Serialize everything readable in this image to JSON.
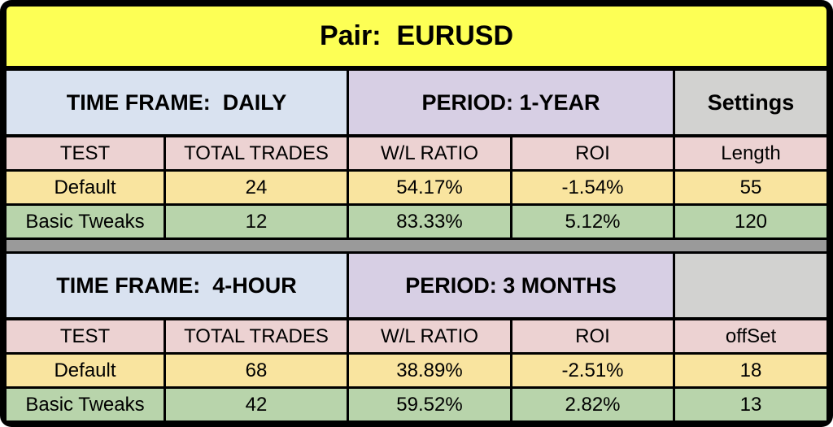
{
  "header": {
    "title": "Pair:  EURUSD"
  },
  "colors": {
    "border": "#000000",
    "title_band": "#fdff55",
    "timeframe_cell": "#d9e2f0",
    "period_cell": "#d7cfe4",
    "settings_cell": "#d2d2d0",
    "column_header_row": "#ecd2d2",
    "default_row": "#f9e49f",
    "basic_tweaks_row": "#b8d4ab",
    "section_divider": "#9a9a9a"
  },
  "tables": [
    {
      "timeframe": "TIME FRAME:  DAILY",
      "period": "PERIOD: 1-YEAR",
      "settings": "Settings",
      "columns": [
        "TEST",
        "TOTAL TRADES",
        "W/L RATIO",
        "ROI",
        "Length"
      ],
      "rows": [
        [
          "Default",
          "24",
          "54.17%",
          "-1.54%",
          "55"
        ],
        [
          "Basic Tweaks",
          "12",
          "83.33%",
          "5.12%",
          "120"
        ]
      ]
    },
    {
      "timeframe": "TIME FRAME:  4-HOUR",
      "period": "PERIOD: 3 MONTHS",
      "settings": "",
      "columns": [
        "TEST",
        "TOTAL TRADES",
        "W/L RATIO",
        "ROI",
        "offSet"
      ],
      "rows": [
        [
          "Default",
          "68",
          "38.89%",
          "-2.51%",
          "18"
        ],
        [
          "Basic Tweaks",
          "42",
          "59.52%",
          "2.82%",
          "13"
        ]
      ]
    }
  ],
  "chart_data": [
    {
      "type": "table",
      "title": "Pair: EURUSD — TIME FRAME: DAILY, PERIOD: 1-YEAR",
      "columns": [
        "TEST",
        "TOTAL TRADES",
        "W/L RATIO",
        "ROI",
        "Length"
      ],
      "rows": [
        [
          "Default",
          24,
          "54.17%",
          "-1.54%",
          55
        ],
        [
          "Basic Tweaks",
          12,
          "83.33%",
          "5.12%",
          120
        ]
      ]
    },
    {
      "type": "table",
      "title": "Pair: EURUSD — TIME FRAME: 4-HOUR, PERIOD: 3 MONTHS",
      "columns": [
        "TEST",
        "TOTAL TRADES",
        "W/L RATIO",
        "ROI",
        "offSet"
      ],
      "rows": [
        [
          "Default",
          68,
          "38.89%",
          "-2.51%",
          18
        ],
        [
          "Basic Tweaks",
          42,
          "59.52%",
          "2.82%",
          13
        ]
      ]
    }
  ]
}
